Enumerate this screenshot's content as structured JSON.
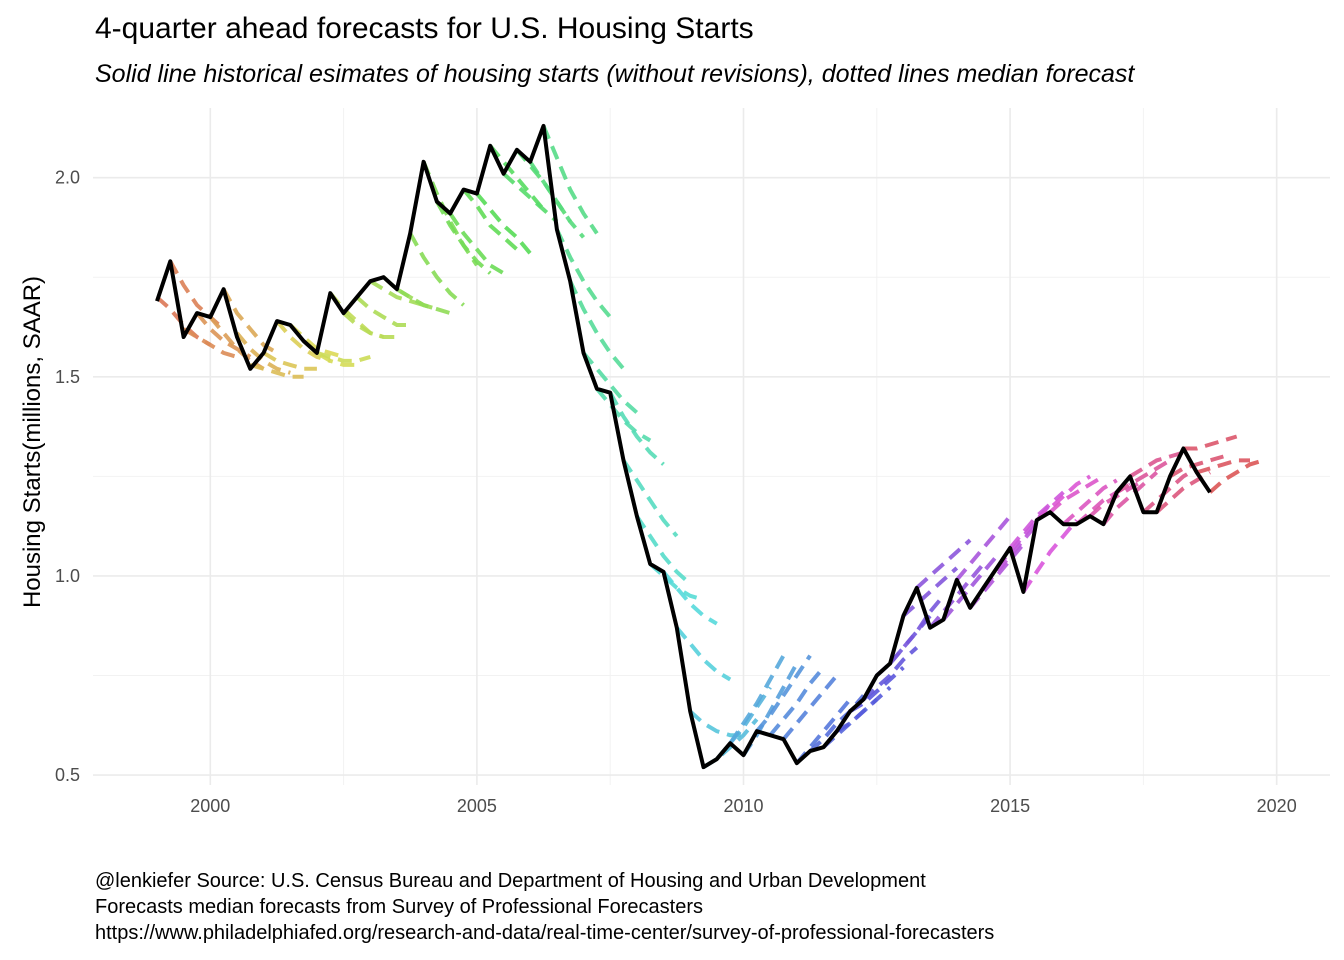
{
  "title": "4-quarter ahead forecasts for U.S. Housing Starts",
  "subtitle": "Solid line historical esimates of housing starts (without revisions), dotted lines median forecast",
  "caption": [
    "@lenkiefer Source: U.S. Census Bureau and Department of Housing and Urban Development",
    "Forecasts median forecasts from Survey of Professional Forecasters",
    "https://www.philadelphiafed.org/research-and-data/real-time-center/survey-of-professional-forecasters"
  ],
  "chart_data": {
    "type": "line",
    "title": "4-quarter ahead forecasts for U.S. Housing Starts",
    "ylabel": "Housing Starts(millions, SAAR)",
    "xlabel": "",
    "xlim": [
      1997.8,
      2021.0
    ],
    "ylim": [
      0.475,
      2.175
    ],
    "xticks": [
      2000,
      2005,
      2010,
      2015,
      2020
    ],
    "yticks": [
      0.5,
      1.0,
      1.5,
      2.0
    ],
    "ytick_labels": [
      "0.5",
      "1.0",
      "1.5",
      "2.0"
    ],
    "grid": true,
    "legend": "none",
    "historical": {
      "color": "#000000",
      "x": [
        1999.0,
        1999.25,
        1999.5,
        1999.75,
        2000.0,
        2000.25,
        2000.5,
        2000.75,
        2001.0,
        2001.25,
        2001.5,
        2001.75,
        2002.0,
        2002.25,
        2002.5,
        2002.75,
        2003.0,
        2003.25,
        2003.5,
        2003.75,
        2004.0,
        2004.25,
        2004.5,
        2004.75,
        2005.0,
        2005.25,
        2005.5,
        2005.75,
        2006.0,
        2006.25,
        2006.5,
        2006.75,
        2007.0,
        2007.25,
        2007.5,
        2007.75,
        2008.0,
        2008.25,
        2008.5,
        2008.75,
        2009.0,
        2009.25,
        2009.5,
        2009.75,
        2010.0,
        2010.25,
        2010.5,
        2010.75,
        2011.0,
        2011.25,
        2011.5,
        2011.75,
        2012.0,
        2012.25,
        2012.5,
        2012.75,
        2013.0,
        2013.25,
        2013.5,
        2013.75,
        2014.0,
        2014.25,
        2014.5,
        2014.75,
        2015.0,
        2015.25,
        2015.5,
        2015.75,
        2016.0,
        2016.25,
        2016.5,
        2016.75,
        2017.0,
        2017.25,
        2017.5,
        2017.75,
        2018.0,
        2018.25,
        2018.5,
        2018.75
      ],
      "y": [
        1.69,
        1.79,
        1.6,
        1.66,
        1.65,
        1.72,
        1.6,
        1.52,
        1.56,
        1.64,
        1.63,
        1.59,
        1.56,
        1.71,
        1.66,
        1.7,
        1.74,
        1.75,
        1.72,
        1.86,
        2.04,
        1.94,
        1.91,
        1.97,
        1.96,
        2.08,
        2.01,
        2.07,
        2.04,
        2.13,
        1.87,
        1.74,
        1.56,
        1.47,
        1.46,
        1.29,
        1.15,
        1.03,
        1.01,
        0.87,
        0.66,
        0.52,
        0.54,
        0.58,
        0.55,
        0.61,
        0.6,
        0.59,
        0.53,
        0.56,
        0.57,
        0.61,
        0.66,
        0.69,
        0.75,
        0.78,
        0.9,
        0.97,
        0.87,
        0.89,
        0.99,
        0.92,
        0.97,
        1.02,
        1.07,
        0.96,
        1.14,
        1.16,
        1.13,
        1.13,
        1.15,
        1.13,
        1.21,
        1.25,
        1.16,
        1.16,
        1.25,
        1.32,
        1.26,
        1.21
      ]
    },
    "forecast_start_year": 1999.0,
    "forecast_step": 0.25,
    "forecast_ys": [
      [
        1.7,
        1.67,
        1.63,
        1.6,
        1.58
      ],
      [
        1.79,
        1.73,
        1.68,
        1.65,
        1.62
      ],
      [
        1.62,
        1.6,
        1.58,
        1.56,
        1.55
      ],
      [
        1.66,
        1.62,
        1.59,
        1.57,
        1.55
      ],
      [
        1.65,
        1.61,
        1.57,
        1.54,
        1.52
      ],
      [
        1.72,
        1.66,
        1.62,
        1.58,
        1.56
      ],
      [
        1.61,
        1.57,
        1.54,
        1.52,
        1.51
      ],
      [
        1.53,
        1.52,
        1.51,
        1.5,
        1.5
      ],
      [
        1.56,
        1.54,
        1.53,
        1.52,
        1.52
      ],
      [
        1.64,
        1.6,
        1.57,
        1.55,
        1.54
      ],
      [
        1.63,
        1.6,
        1.57,
        1.56,
        1.55
      ],
      [
        1.59,
        1.56,
        1.54,
        1.53,
        1.53
      ],
      [
        1.56,
        1.55,
        1.54,
        1.54,
        1.55
      ],
      [
        1.71,
        1.67,
        1.64,
        1.61,
        1.6
      ],
      [
        1.66,
        1.63,
        1.61,
        1.6,
        1.6
      ],
      [
        1.7,
        1.67,
        1.65,
        1.63,
        1.63
      ],
      [
        1.74,
        1.72,
        1.7,
        1.69,
        1.68
      ],
      [
        1.75,
        1.72,
        1.7,
        1.68,
        1.67
      ],
      [
        1.72,
        1.7,
        1.68,
        1.67,
        1.66
      ],
      [
        1.86,
        1.8,
        1.75,
        1.71,
        1.68
      ],
      [
        2.04,
        1.96,
        1.89,
        1.83,
        1.78
      ],
      [
        1.94,
        1.88,
        1.83,
        1.79,
        1.76
      ],
      [
        1.91,
        1.86,
        1.82,
        1.78,
        1.76
      ],
      [
        1.97,
        1.93,
        1.88,
        1.85,
        1.82
      ],
      [
        1.96,
        1.92,
        1.88,
        1.85,
        1.81
      ],
      [
        2.08,
        2.04,
        2.0,
        1.96,
        1.92
      ],
      [
        2.01,
        1.98,
        1.95,
        1.92,
        1.89
      ],
      [
        2.07,
        2.03,
        1.99,
        1.94,
        1.89
      ],
      [
        2.04,
        1.99,
        1.94,
        1.89,
        1.85
      ],
      [
        2.13,
        2.05,
        1.97,
        1.91,
        1.86
      ],
      [
        1.87,
        1.8,
        1.74,
        1.69,
        1.65
      ],
      [
        1.74,
        1.67,
        1.61,
        1.56,
        1.52
      ],
      [
        1.56,
        1.52,
        1.48,
        1.44,
        1.41
      ],
      [
        1.47,
        1.43,
        1.39,
        1.36,
        1.34
      ],
      [
        1.46,
        1.4,
        1.35,
        1.31,
        1.28
      ],
      [
        1.29,
        1.24,
        1.19,
        1.14,
        1.1
      ],
      [
        1.15,
        1.1,
        1.05,
        1.01,
        0.98
      ],
      [
        1.03,
        1.0,
        0.97,
        0.95,
        0.94
      ],
      [
        1.01,
        0.97,
        0.93,
        0.9,
        0.88
      ],
      [
        0.87,
        0.83,
        0.79,
        0.76,
        0.74
      ],
      [
        0.66,
        0.63,
        0.61,
        0.6,
        0.6
      ],
      [
        0.52,
        0.54,
        0.57,
        0.6,
        0.64
      ],
      [
        0.54,
        0.58,
        0.62,
        0.67,
        0.72
      ],
      [
        0.58,
        0.63,
        0.68,
        0.74,
        0.8
      ],
      [
        0.55,
        0.6,
        0.66,
        0.72,
        0.78
      ],
      [
        0.61,
        0.65,
        0.7,
        0.75,
        0.8
      ],
      [
        0.6,
        0.64,
        0.68,
        0.73,
        0.77
      ],
      [
        0.59,
        0.63,
        0.67,
        0.71,
        0.75
      ],
      [
        0.53,
        0.57,
        0.61,
        0.65,
        0.69
      ],
      [
        0.56,
        0.59,
        0.63,
        0.66,
        0.7
      ],
      [
        0.57,
        0.6,
        0.63,
        0.66,
        0.69
      ],
      [
        0.61,
        0.63,
        0.66,
        0.69,
        0.72
      ],
      [
        0.66,
        0.68,
        0.71,
        0.74,
        0.77
      ],
      [
        0.69,
        0.72,
        0.75,
        0.79,
        0.82
      ],
      [
        0.75,
        0.78,
        0.82,
        0.86,
        0.9
      ],
      [
        0.78,
        0.82,
        0.86,
        0.91,
        0.95
      ],
      [
        0.9,
        0.93,
        0.96,
        0.99,
        1.02
      ],
      [
        0.97,
        1.0,
        1.03,
        1.06,
        1.09
      ],
      [
        0.87,
        0.91,
        0.95,
        0.99,
        1.03
      ],
      [
        0.89,
        0.93,
        0.97,
        1.01,
        1.05
      ],
      [
        0.99,
        1.03,
        1.07,
        1.11,
        1.15
      ],
      [
        0.92,
        0.96,
        1.0,
        1.04,
        1.08
      ],
      [
        0.97,
        1.01,
        1.05,
        1.09,
        1.13
      ],
      [
        1.02,
        1.06,
        1.1,
        1.14,
        1.18
      ],
      [
        1.07,
        1.11,
        1.15,
        1.18,
        1.21
      ],
      [
        0.96,
        1.01,
        1.06,
        1.1,
        1.14
      ],
      [
        1.14,
        1.17,
        1.2,
        1.23,
        1.25
      ],
      [
        1.16,
        1.19,
        1.21,
        1.23,
        1.25
      ],
      [
        1.13,
        1.16,
        1.19,
        1.22,
        1.24
      ],
      [
        1.13,
        1.16,
        1.19,
        1.21,
        1.23
      ],
      [
        1.15,
        1.18,
        1.2,
        1.22,
        1.24
      ],
      [
        1.13,
        1.17,
        1.2,
        1.23,
        1.26
      ],
      [
        1.21,
        1.23,
        1.25,
        1.27,
        1.29
      ],
      [
        1.25,
        1.27,
        1.29,
        1.3,
        1.31
      ],
      [
        1.16,
        1.19,
        1.22,
        1.25,
        1.27
      ],
      [
        1.16,
        1.19,
        1.22,
        1.24,
        1.26
      ],
      [
        1.25,
        1.27,
        1.28,
        1.29,
        1.3
      ],
      [
        1.32,
        1.32,
        1.33,
        1.34,
        1.35
      ],
      [
        1.26,
        1.27,
        1.28,
        1.29,
        1.29
      ],
      [
        1.21,
        1.24,
        1.26,
        1.28,
        1.29
      ]
    ]
  }
}
